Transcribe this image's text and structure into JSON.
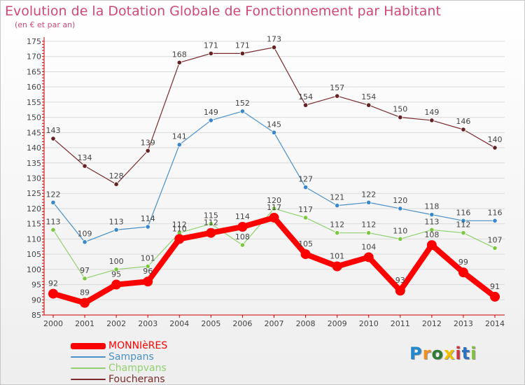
{
  "title": "Evolution de la Dotation Globale de Fonctionnement par Habitant",
  "subtitle": "(en € et par an)",
  "brand": {
    "text": "Proxiti",
    "colors": [
      "#1e88d0",
      "#f09020",
      "#2e7d32",
      "#f0c000",
      "#d03040",
      "#3070c0",
      "#80c040"
    ]
  },
  "chart_data": {
    "type": "line",
    "title": "Evolution de la Dotation Globale de Fonctionnement par Habitant",
    "subtitle": "(en € et par an)",
    "xlabel": "",
    "ylabel": "",
    "categories": [
      "2000",
      "2001",
      "2002",
      "2003",
      "2004",
      "2005",
      "2006",
      "2007",
      "2008",
      "2009",
      "2010",
      "2011",
      "2012",
      "2013",
      "2014"
    ],
    "ylim": [
      85,
      175
    ],
    "yticks": [
      85,
      90,
      95,
      100,
      105,
      110,
      115,
      120,
      125,
      130,
      135,
      140,
      145,
      150,
      155,
      160,
      165,
      170,
      175
    ],
    "grid": "horizontal",
    "series": [
      {
        "name": "MONNIèRES",
        "color": "#ff0000",
        "emphasis": true,
        "values": [
          92,
          89,
          95,
          96,
          110,
          112,
          114,
          117,
          105,
          101,
          104,
          93,
          108,
          99,
          91
        ],
        "labels": [
          "92",
          "89",
          "95",
          "96",
          "110",
          "112",
          "114",
          "117",
          "105",
          "101",
          "104",
          "93",
          "108",
          "99",
          "91"
        ]
      },
      {
        "name": "Sampans",
        "color": "#4a90c8",
        "marker": "#3a88cc",
        "values": [
          122,
          109,
          113,
          114,
          141,
          149,
          152,
          145,
          127,
          121,
          122,
          120,
          118,
          116,
          116
        ],
        "labels": [
          "122",
          "109",
          "113",
          "114",
          "141",
          "149",
          "152",
          "145",
          "127",
          "121",
          "122",
          "120",
          "118",
          "116",
          "116"
        ]
      },
      {
        "name": "Champvans",
        "color": "#90d070",
        "marker": "#7cc840",
        "values": [
          113,
          97,
          100,
          101,
          112,
          115,
          108,
          120,
          117,
          112,
          112,
          110,
          113,
          112,
          107
        ],
        "labels": [
          "113",
          "97",
          "100",
          "101",
          "112",
          "115",
          "108",
          "120",
          "117",
          "112",
          "112",
          "110",
          "113",
          "112",
          "107"
        ]
      },
      {
        "name": "Foucherans",
        "color": "#7a2a2a",
        "marker": "#662222",
        "values": [
          143,
          134,
          128,
          139,
          168,
          171,
          171,
          173,
          154,
          157,
          154,
          150,
          149,
          146,
          140
        ],
        "labels": [
          "143",
          "134",
          "128",
          "139",
          "168",
          "171",
          "171",
          "173",
          "154",
          "157",
          "154",
          "150",
          "149",
          "146",
          "140"
        ]
      }
    ]
  }
}
